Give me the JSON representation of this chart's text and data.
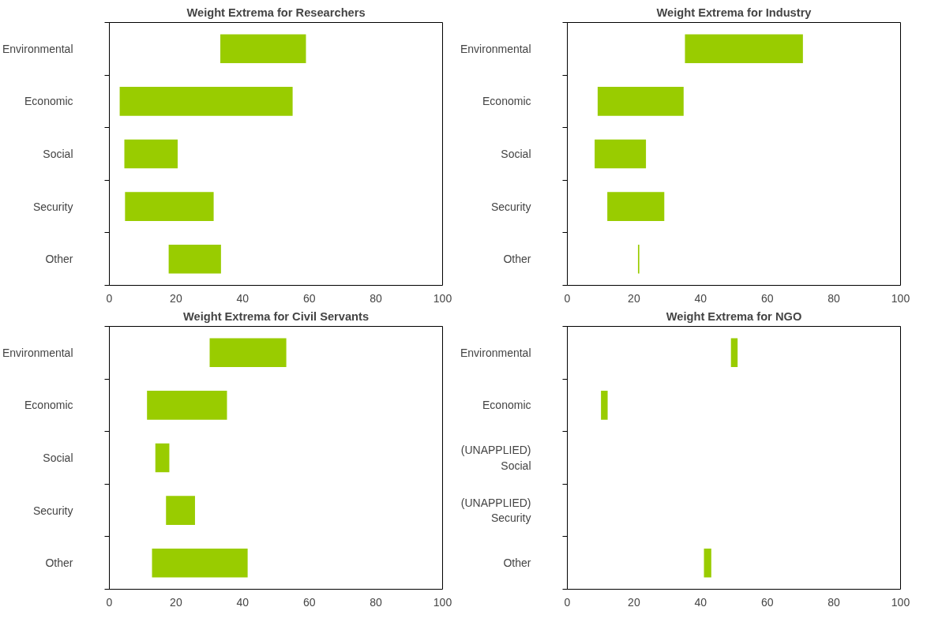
{
  "chart_data": [
    {
      "type": "bar",
      "orientation": "horizontal",
      "title": "Weight Extrema for Researchers",
      "categories": [
        "Environmental",
        "Economic",
        "Social",
        "Security",
        "Other"
      ],
      "base": [
        33.3,
        3.1,
        4.5,
        4.7,
        17.8
      ],
      "values": [
        25.7,
        51.9,
        16.0,
        26.6,
        15.7
      ],
      "color": "#99cc00",
      "xlim": [
        0,
        100
      ],
      "xticks": [
        0,
        20,
        40,
        60,
        80,
        100
      ],
      "grid": false,
      "legend": false
    },
    {
      "type": "bar",
      "orientation": "horizontal",
      "title": "Weight Extrema for Industry",
      "categories": [
        "Environmental",
        "Economic",
        "Social",
        "Security",
        "Other"
      ],
      "base": [
        35.3,
        9.1,
        8.2,
        12.0,
        21.2
      ],
      "values": [
        35.4,
        25.8,
        15.4,
        17.1,
        0.4
      ],
      "color": "#99cc00",
      "xlim": [
        0,
        100
      ],
      "xticks": [
        0,
        20,
        40,
        60,
        80,
        100
      ],
      "grid": false,
      "legend": false
    },
    {
      "type": "bar",
      "orientation": "horizontal",
      "title": "Weight Extrema for Civil Servants",
      "categories": [
        "Environmental",
        "Economic",
        "Social",
        "Security",
        "Other"
      ],
      "base": [
        30.1,
        11.3,
        13.8,
        17.0,
        12.8
      ],
      "values": [
        23.0,
        24.0,
        4.2,
        8.7,
        28.7
      ],
      "color": "#99cc00",
      "xlim": [
        0,
        100
      ],
      "xticks": [
        0,
        20,
        40,
        60,
        80,
        100
      ],
      "grid": false,
      "legend": false
    },
    {
      "type": "bar",
      "orientation": "horizontal",
      "title": "Weight Extrema for NGO",
      "categories": [
        "Environmental",
        "Economic",
        "(UNAPPLIED)\nSocial",
        "(UNAPPLIED)\nSecurity",
        "Other"
      ],
      "base": [
        49.1,
        10.1,
        null,
        null,
        41.0
      ],
      "values": [
        2.0,
        2.0,
        null,
        null,
        2.2
      ],
      "color": "#99cc00",
      "xlim": [
        0,
        100
      ],
      "xticks": [
        0,
        20,
        40,
        60,
        80,
        100
      ],
      "grid": false,
      "legend": false
    }
  ]
}
